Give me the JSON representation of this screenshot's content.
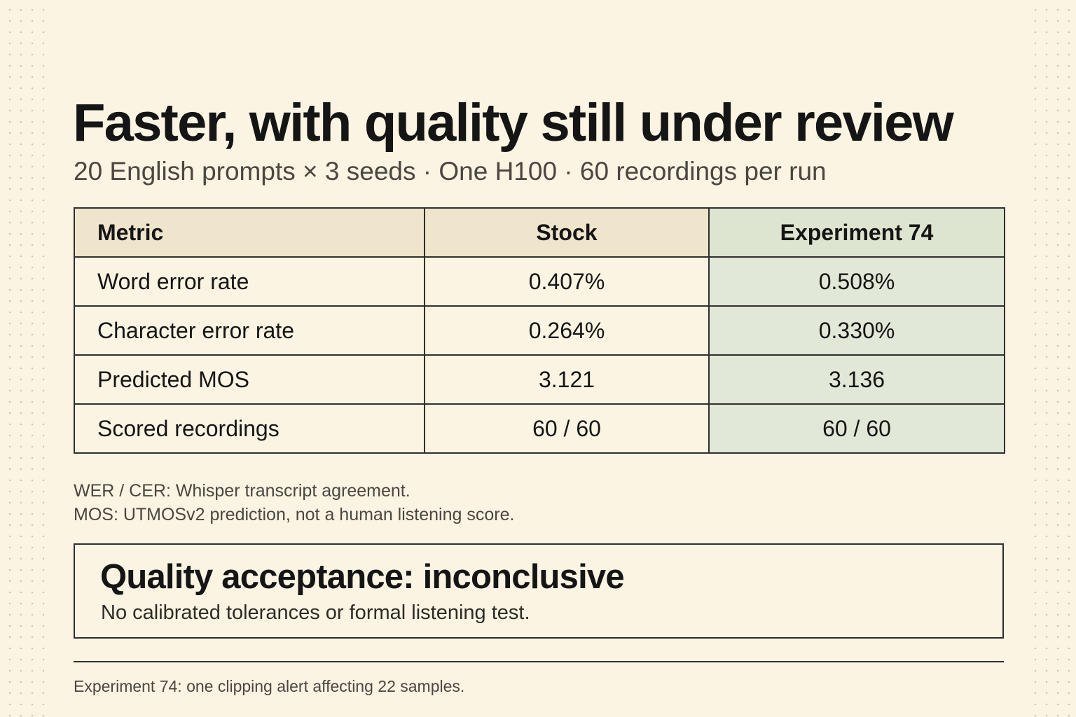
{
  "title": "Faster, with quality still under review",
  "subtitle": "20 English prompts × 3 seeds · One H100 · 60 recordings per run",
  "table": {
    "headers": [
      "Metric",
      "Stock",
      "Experiment 74"
    ],
    "rows": [
      [
        "Word error rate",
        "0.407%",
        "0.508%"
      ],
      [
        "Character error rate",
        "0.264%",
        "0.330%"
      ],
      [
        "Predicted MOS",
        "3.121",
        "3.136"
      ],
      [
        "Scored recordings",
        "60 / 60",
        "60 / 60"
      ]
    ]
  },
  "notes": [
    "WER / CER: Whisper transcript agreement.",
    "MOS: UTMOSv2 prediction, not a human listening score."
  ],
  "verdict": {
    "title": "Quality acceptance: inconclusive",
    "detail": "No calibrated tolerances or formal listening test."
  },
  "footnote": "Experiment 74: one clipping alert affecting 22 samples.",
  "colors": {
    "background": "#fbf4e3",
    "header_stock": "#efe4cc",
    "header_experiment": "#dde5d0",
    "experiment_column": "#e1e8d8",
    "border": "#2f2f2f"
  }
}
